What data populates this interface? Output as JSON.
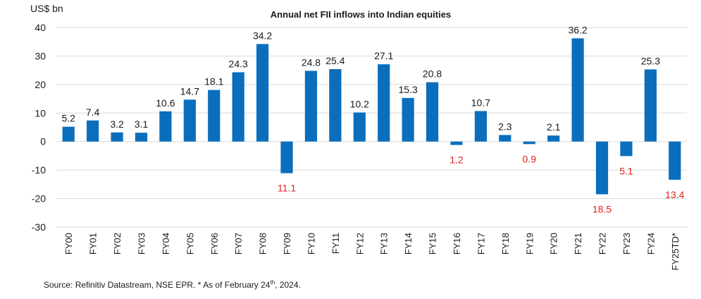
{
  "chart_data": {
    "type": "bar",
    "title": "Annual net FII inflows into Indian equities",
    "ylabel": "US$ bn",
    "ylim": [
      -30,
      40
    ],
    "yticks": [
      40,
      30,
      20,
      10,
      0,
      -10,
      -20,
      -30
    ],
    "grid": true,
    "categories": [
      "FY00",
      "FY01",
      "FY02",
      "FY03",
      "FY04",
      "FY05",
      "FY06",
      "FY07",
      "FY08",
      "FY09",
      "FY10",
      "FY11",
      "FY12",
      "FY13",
      "FY14",
      "FY15",
      "FY16",
      "FY17",
      "FY18",
      "FY19",
      "FY20",
      "FY21",
      "FY22",
      "FY23",
      "FY24",
      "FY25TD*"
    ],
    "values": [
      5.2,
      7.4,
      3.2,
      3.1,
      10.6,
      14.7,
      18.1,
      24.3,
      34.2,
      -11.1,
      24.8,
      25.4,
      10.2,
      27.1,
      15.3,
      20.8,
      -1.2,
      10.7,
      2.3,
      -0.9,
      2.1,
      36.2,
      -18.5,
      -5.1,
      25.3,
      -13.4
    ],
    "data_labels": [
      "5.2",
      "7.4",
      "3.2",
      "3.1",
      "10.6",
      "14.7",
      "18.1",
      "24.3",
      "34.2",
      "11.1",
      "24.8",
      "25.4",
      "10.2",
      "27.1",
      "15.3",
      "20.8",
      "1.2",
      "10.7",
      "2.3",
      "0.9",
      "2.1",
      "36.2",
      "18.5",
      "5.1",
      "25.3",
      "13.4"
    ],
    "colors": {
      "bar": "#0a6ebd",
      "positive_label": "#1a1a1a",
      "negative_label": "#e0211b",
      "grid": "#d9d9d9"
    }
  },
  "source_note": {
    "text_before": "Source: Refinitiv Datastream, NSE EPR. * As of February 24",
    "superscript": "th",
    "text_after": ", 2024."
  }
}
